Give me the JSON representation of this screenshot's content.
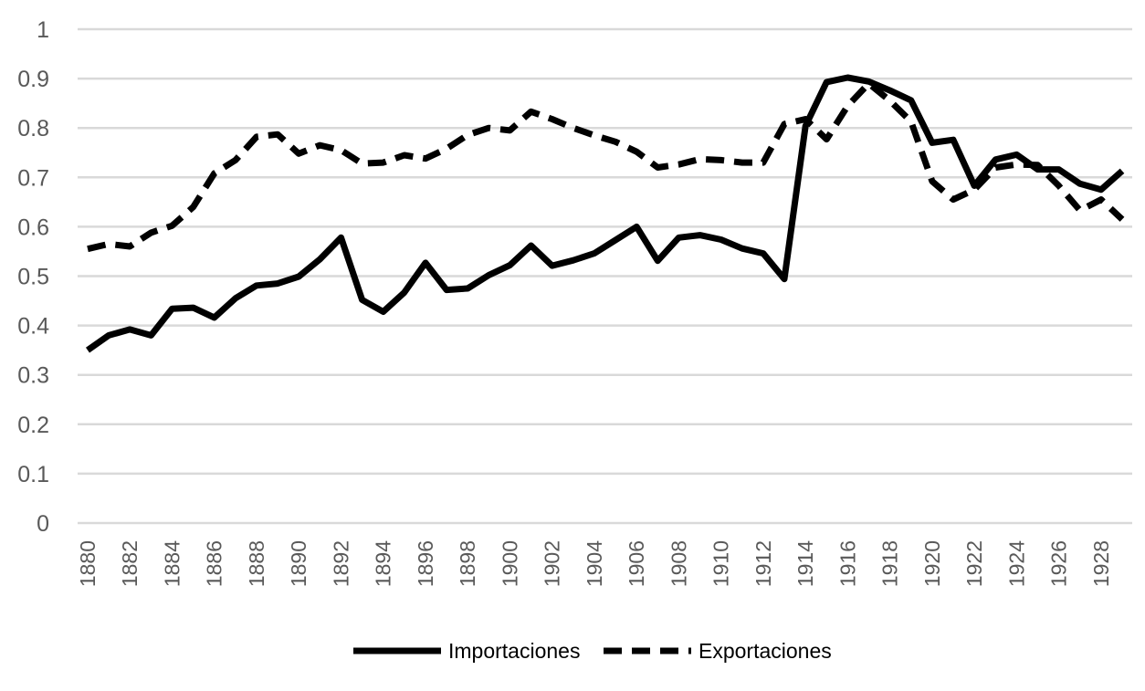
{
  "chart_data": {
    "type": "line",
    "x": [
      1880,
      1881,
      1882,
      1883,
      1884,
      1885,
      1886,
      1887,
      1888,
      1889,
      1890,
      1891,
      1892,
      1893,
      1894,
      1895,
      1896,
      1897,
      1898,
      1899,
      1900,
      1901,
      1902,
      1903,
      1904,
      1905,
      1906,
      1907,
      1908,
      1909,
      1910,
      1911,
      1912,
      1913,
      1914,
      1915,
      1916,
      1917,
      1918,
      1919,
      1920,
      1921,
      1922,
      1923,
      1924,
      1925,
      1926,
      1927,
      1928,
      1929
    ],
    "x_tick_labels": [
      "1880",
      "1882",
      "1884",
      "1886",
      "1888",
      "1890",
      "1892",
      "1894",
      "1896",
      "1898",
      "1900",
      "1902",
      "1904",
      "1906",
      "1908",
      "1910",
      "1912",
      "1914",
      "1916",
      "1918",
      "1920",
      "1922",
      "1924",
      "1926",
      "1928"
    ],
    "y_tick_labels": [
      "0",
      "0.1",
      "0.2",
      "0.3",
      "0.4",
      "0.5",
      "0.6",
      "0.7",
      "0.8",
      "0.9",
      "1"
    ],
    "ylim": [
      0,
      1
    ],
    "grid": true,
    "legend_position": "bottom",
    "series": [
      {
        "name": "Importaciones",
        "style": "solid",
        "color": "#000000",
        "values": [
          0.35,
          0.38,
          0.392,
          0.38,
          0.434,
          0.436,
          0.416,
          0.455,
          0.481,
          0.485,
          0.499,
          0.534,
          0.578,
          0.452,
          0.428,
          0.467,
          0.527,
          0.472,
          0.475,
          0.502,
          0.522,
          0.562,
          0.521,
          0.532,
          0.546,
          0.573,
          0.6,
          0.531,
          0.578,
          0.583,
          0.574,
          0.556,
          0.546,
          0.494,
          0.804,
          0.893,
          0.902,
          0.894,
          0.876,
          0.856,
          0.77,
          0.776,
          0.683,
          0.736,
          0.746,
          0.716,
          0.716,
          0.687,
          0.675,
          0.713
        ]
      },
      {
        "name": "Exportaciones",
        "style": "dashed",
        "color": "#000000",
        "values": [
          0.555,
          0.565,
          0.56,
          0.588,
          0.602,
          0.64,
          0.708,
          0.735,
          0.782,
          0.787,
          0.748,
          0.765,
          0.755,
          0.728,
          0.73,
          0.745,
          0.738,
          0.758,
          0.786,
          0.8,
          0.795,
          0.833,
          0.818,
          0.8,
          0.785,
          0.772,
          0.752,
          0.72,
          0.726,
          0.737,
          0.735,
          0.73,
          0.73,
          0.808,
          0.818,
          0.777,
          0.845,
          0.89,
          0.855,
          0.813,
          0.692,
          0.655,
          0.675,
          0.72,
          0.726,
          0.725,
          0.683,
          0.633,
          0.655,
          0.615
        ]
      }
    ]
  }
}
